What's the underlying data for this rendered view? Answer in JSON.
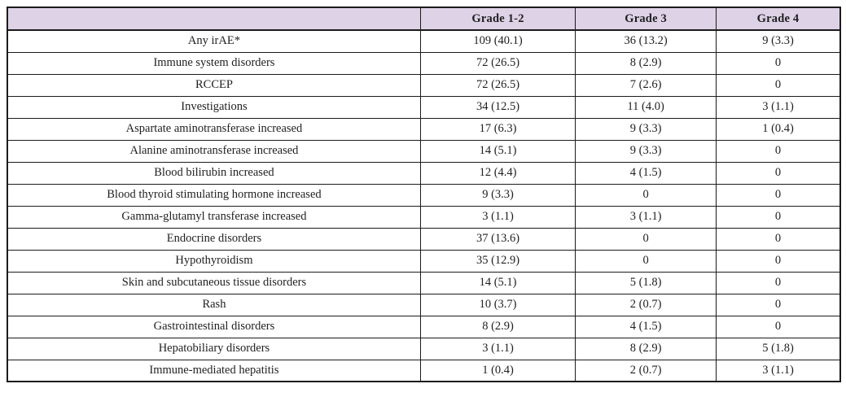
{
  "colors": {
    "header_bg": "#ddd2e6",
    "border_color": "#1b1b1b",
    "text_color": "#1f1f1f",
    "page_bg": "#ffffff"
  },
  "table": {
    "header": [
      "",
      "Grade 1-2",
      "Grade 3",
      "Grade 4"
    ],
    "rows": [
      [
        "Any irAE*",
        "109 (40.1)",
        "36 (13.2)",
        "9 (3.3)"
      ],
      [
        "Immune system disorders",
        "72 (26.5)",
        "8 (2.9)",
        "0"
      ],
      [
        "RCCEP",
        "72 (26.5)",
        "7 (2.6)",
        "0"
      ],
      [
        "Investigations",
        "34 (12.5)",
        "11 (4.0)",
        "3 (1.1)"
      ],
      [
        "Aspartate aminotransferase increased",
        "17 (6.3)",
        "9 (3.3)",
        "1 (0.4)"
      ],
      [
        "Alanine aminotransferase increased",
        "14 (5.1)",
        "9 (3.3)",
        "0"
      ],
      [
        "Blood bilirubin increased",
        "12 (4.4)",
        "4 (1.5)",
        "0"
      ],
      [
        "Blood thyroid stimulating hormone increased",
        "9 (3.3)",
        "0",
        "0"
      ],
      [
        "Gamma-glutamyl transferase increased",
        "3 (1.1)",
        "3 (1.1)",
        "0"
      ],
      [
        "Endocrine disorders",
        "37 (13.6)",
        "0",
        "0"
      ],
      [
        "Hypothyroidism",
        "35 (12.9)",
        "0",
        "0"
      ],
      [
        "Skin and subcutaneous tissue disorders",
        "14 (5.1)",
        "5 (1.8)",
        "0"
      ],
      [
        "Rash",
        "10 (3.7)",
        "2 (0.7)",
        "0"
      ],
      [
        "Gastrointestinal disorders",
        "8 (2.9)",
        "4 (1.5)",
        "0"
      ],
      [
        "Hepatobiliary disorders",
        "3 (1.1)",
        "8 (2.9)",
        "5 (1.8)"
      ],
      [
        "Immune-mediated hepatitis",
        "1 (0.4)",
        "2 (0.7)",
        "3 (1.1)"
      ]
    ]
  },
  "chart_data": {
    "type": "table",
    "title": "",
    "columns": [
      "",
      "Grade 1-2",
      "Grade 3",
      "Grade 4"
    ],
    "rows": [
      {
        "label": "Any irAE*",
        "grade_1_2": "109 (40.1)",
        "grade_3": "36 (13.2)",
        "grade_4": "9 (3.3)"
      },
      {
        "label": "Immune system disorders",
        "grade_1_2": "72 (26.5)",
        "grade_3": "8 (2.9)",
        "grade_4": "0"
      },
      {
        "label": "RCCEP",
        "grade_1_2": "72 (26.5)",
        "grade_3": "7 (2.6)",
        "grade_4": "0"
      },
      {
        "label": "Investigations",
        "grade_1_2": "34 (12.5)",
        "grade_3": "11 (4.0)",
        "grade_4": "3 (1.1)"
      },
      {
        "label": "Aspartate aminotransferase increased",
        "grade_1_2": "17 (6.3)",
        "grade_3": "9 (3.3)",
        "grade_4": "1 (0.4)"
      },
      {
        "label": "Alanine aminotransferase increased",
        "grade_1_2": "14 (5.1)",
        "grade_3": "9 (3.3)",
        "grade_4": "0"
      },
      {
        "label": "Blood bilirubin increased",
        "grade_1_2": "12 (4.4)",
        "grade_3": "4 (1.5)",
        "grade_4": "0"
      },
      {
        "label": "Blood thyroid stimulating hormone increased",
        "grade_1_2": "9 (3.3)",
        "grade_3": "0",
        "grade_4": "0"
      },
      {
        "label": "Gamma-glutamyl transferase increased",
        "grade_1_2": "3 (1.1)",
        "grade_3": "3 (1.1)",
        "grade_4": "0"
      },
      {
        "label": "Endocrine disorders",
        "grade_1_2": "37 (13.6)",
        "grade_3": "0",
        "grade_4": "0"
      },
      {
        "label": "Hypothyroidism",
        "grade_1_2": "35 (12.9)",
        "grade_3": "0",
        "grade_4": "0"
      },
      {
        "label": "Skin and subcutaneous tissue disorders",
        "grade_1_2": "14 (5.1)",
        "grade_3": "5 (1.8)",
        "grade_4": "0"
      },
      {
        "label": "Rash",
        "grade_1_2": "10 (3.7)",
        "grade_3": "2 (0.7)",
        "grade_4": "0"
      },
      {
        "label": "Gastrointestinal disorders",
        "grade_1_2": "8 (2.9)",
        "grade_3": "4 (1.5)",
        "grade_4": "0"
      },
      {
        "label": "Hepatobiliary disorders",
        "grade_1_2": "3 (1.1)",
        "grade_3": "8 (2.9)",
        "grade_4": "5 (1.8)"
      },
      {
        "label": "Immune-mediated hepatitis",
        "grade_1_2": "1 (0.4)",
        "grade_3": "2 (0.7)",
        "grade_4": "3 (1.1)"
      }
    ]
  }
}
